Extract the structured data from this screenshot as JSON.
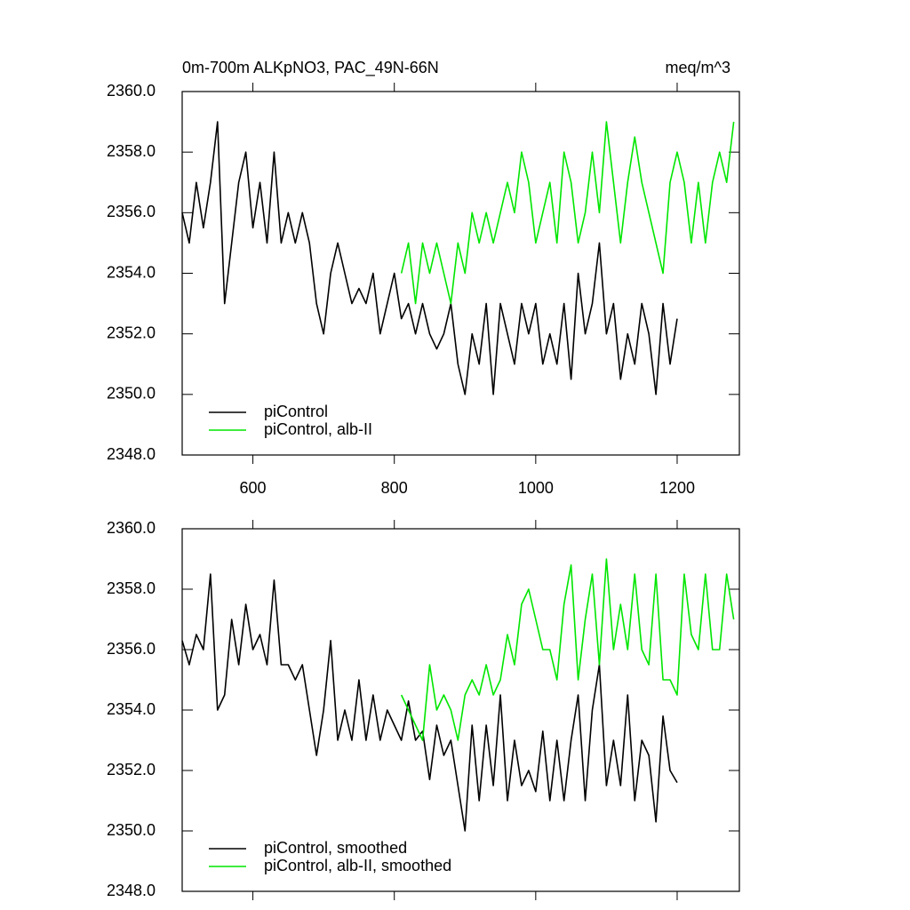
{
  "chart_data": [
    {
      "type": "line",
      "title": "0m-700m ALKpNO3, PAC_49N-66N",
      "units": "meq/m^3",
      "xlim": [
        500,
        1288
      ],
      "xticks": [
        600,
        800,
        1000,
        1200
      ],
      "xtick_labels": true,
      "ylim": [
        2348,
        2360
      ],
      "yticks": [
        {
          "value": 2348,
          "label": "2348.0"
        },
        {
          "value": 2350,
          "label": "2350.0"
        },
        {
          "value": 2352,
          "label": "2352.0"
        },
        {
          "value": 2354,
          "label": "2354.0"
        },
        {
          "value": 2356,
          "label": "2356.0"
        },
        {
          "value": 2358,
          "label": "2358.0"
        },
        {
          "value": 2360,
          "label": "2360.0"
        }
      ],
      "legend": "lower left",
      "series": [
        {
          "name": "piControl",
          "color": "#000000",
          "x": [
            500,
            510,
            520,
            530,
            540,
            550,
            560,
            570,
            580,
            590,
            600,
            610,
            620,
            630,
            640,
            650,
            660,
            670,
            680,
            690,
            700,
            710,
            720,
            730,
            740,
            750,
            760,
            770,
            780,
            790,
            800,
            810,
            820,
            830,
            840,
            850,
            860,
            870,
            880,
            890,
            900,
            910,
            920,
            930,
            940,
            950,
            960,
            970,
            980,
            990,
            1000,
            1010,
            1020,
            1030,
            1040,
            1050,
            1060,
            1070,
            1080,
            1090,
            1100,
            1110,
            1120,
            1130,
            1140,
            1150,
            1160,
            1170,
            1180,
            1190,
            1200
          ],
          "values": [
            2356,
            2355,
            2357,
            2355.5,
            2357,
            2359,
            2353,
            2355,
            2357,
            2358,
            2355.5,
            2357,
            2355,
            2358,
            2355,
            2356,
            2355,
            2356,
            2355,
            2353,
            2352,
            2354,
            2355,
            2354,
            2353,
            2353.5,
            2353,
            2354,
            2352,
            2353,
            2354,
            2352.5,
            2353,
            2352,
            2353,
            2352,
            2351.5,
            2352,
            2353,
            2351,
            2350,
            2352,
            2351,
            2353,
            2350,
            2353,
            2352,
            2351,
            2353,
            2352,
            2353,
            2351,
            2352,
            2351,
            2353,
            2350.5,
            2354,
            2352,
            2353,
            2355,
            2352,
            2353,
            2350.5,
            2352,
            2351,
            2353,
            2352,
            2350,
            2353,
            2351,
            2352.5
          ]
        },
        {
          "name": "piControl, alb-II",
          "color": "#00e600",
          "x": [
            810,
            820,
            830,
            840,
            850,
            860,
            870,
            880,
            890,
            900,
            910,
            920,
            930,
            940,
            950,
            960,
            970,
            980,
            990,
            1000,
            1010,
            1020,
            1030,
            1040,
            1050,
            1060,
            1070,
            1080,
            1090,
            1100,
            1110,
            1120,
            1130,
            1140,
            1150,
            1160,
            1170,
            1180,
            1190,
            1200,
            1210,
            1220,
            1230,
            1240,
            1250,
            1260,
            1270,
            1280
          ],
          "values": [
            2354,
            2355,
            2353,
            2355,
            2354,
            2355,
            2354,
            2353,
            2355,
            2354,
            2356,
            2355,
            2356,
            2355,
            2356,
            2357,
            2356,
            2358,
            2357,
            2355,
            2356,
            2357,
            2355,
            2358,
            2357,
            2355,
            2356,
            2358,
            2356,
            2359,
            2357,
            2355,
            2357,
            2358.5,
            2357,
            2356,
            2355,
            2354,
            2357,
            2358,
            2357,
            2355,
            2357,
            2355,
            2357,
            2358,
            2357,
            2359
          ]
        }
      ]
    },
    {
      "type": "line",
      "xlim": [
        500,
        1288
      ],
      "xticks": [
        600,
        800,
        1000,
        1200
      ],
      "xtick_labels": false,
      "ylim": [
        2348,
        2360
      ],
      "yticks": [
        {
          "value": 2348,
          "label": "2348.0"
        },
        {
          "value": 2350,
          "label": "2350.0"
        },
        {
          "value": 2352,
          "label": "2352.0"
        },
        {
          "value": 2354,
          "label": "2354.0"
        },
        {
          "value": 2356,
          "label": "2356.0"
        },
        {
          "value": 2358,
          "label": "2358.0"
        },
        {
          "value": 2360,
          "label": "2360.0"
        }
      ],
      "legend": "lower left",
      "series": [
        {
          "name": "piControl, smoothed",
          "color": "#000000",
          "x": [
            500,
            510,
            520,
            530,
            540,
            550,
            560,
            570,
            580,
            590,
            600,
            610,
            620,
            630,
            640,
            650,
            660,
            670,
            680,
            690,
            700,
            710,
            720,
            730,
            740,
            750,
            760,
            770,
            780,
            790,
            800,
            810,
            820,
            830,
            840,
            850,
            860,
            870,
            880,
            890,
            900,
            910,
            920,
            930,
            940,
            950,
            960,
            970,
            980,
            990,
            1000,
            1010,
            1020,
            1030,
            1040,
            1050,
            1060,
            1070,
            1080,
            1090,
            1100,
            1110,
            1120,
            1130,
            1140,
            1150,
            1160,
            1170,
            1180,
            1190,
            1200
          ],
          "values": [
            2356.3,
            2355.5,
            2356.5,
            2356,
            2358.5,
            2354,
            2354.5,
            2357,
            2355.5,
            2357.5,
            2356,
            2356.5,
            2355.5,
            2358.3,
            2355.5,
            2355.5,
            2355,
            2355.5,
            2354,
            2352.5,
            2354,
            2356.3,
            2353,
            2354,
            2353,
            2355,
            2353,
            2354.5,
            2353,
            2354,
            2353.5,
            2353,
            2354.3,
            2353,
            2353.3,
            2351.7,
            2353.5,
            2352.5,
            2353,
            2351.5,
            2350,
            2353.5,
            2351,
            2353.5,
            2351.5,
            2354.5,
            2351,
            2353,
            2351.5,
            2352,
            2351.3,
            2353.3,
            2351,
            2353,
            2351,
            2353,
            2354.5,
            2351,
            2354,
            2355.5,
            2351.5,
            2353,
            2351.5,
            2354.5,
            2351,
            2353,
            2352.5,
            2350.3,
            2353.8,
            2352,
            2351.6
          ]
        },
        {
          "name": "piControl, alb-II, smoothed",
          "color": "#00e600",
          "x": [
            810,
            820,
            830,
            840,
            850,
            860,
            870,
            880,
            890,
            900,
            910,
            920,
            930,
            940,
            950,
            960,
            970,
            980,
            990,
            1000,
            1010,
            1020,
            1030,
            1040,
            1050,
            1060,
            1070,
            1080,
            1090,
            1100,
            1110,
            1120,
            1130,
            1140,
            1150,
            1160,
            1170,
            1180,
            1190,
            1200,
            1210,
            1220,
            1230,
            1240,
            1250,
            1260,
            1270,
            1280
          ],
          "values": [
            2354.5,
            2354,
            2353.5,
            2353,
            2355.5,
            2354,
            2354.5,
            2354,
            2353,
            2354.5,
            2355,
            2354.5,
            2355.5,
            2354.5,
            2355,
            2356.5,
            2355.5,
            2357.5,
            2358,
            2357,
            2356,
            2356,
            2355,
            2357.5,
            2358.8,
            2355,
            2357,
            2358.5,
            2355.5,
            2359,
            2356,
            2357.5,
            2356,
            2358.5,
            2356,
            2355.5,
            2358.5,
            2355,
            2355,
            2354.5,
            2358.5,
            2356.5,
            2356,
            2358.5,
            2356,
            2356,
            2358.5,
            2357
          ]
        }
      ]
    }
  ]
}
